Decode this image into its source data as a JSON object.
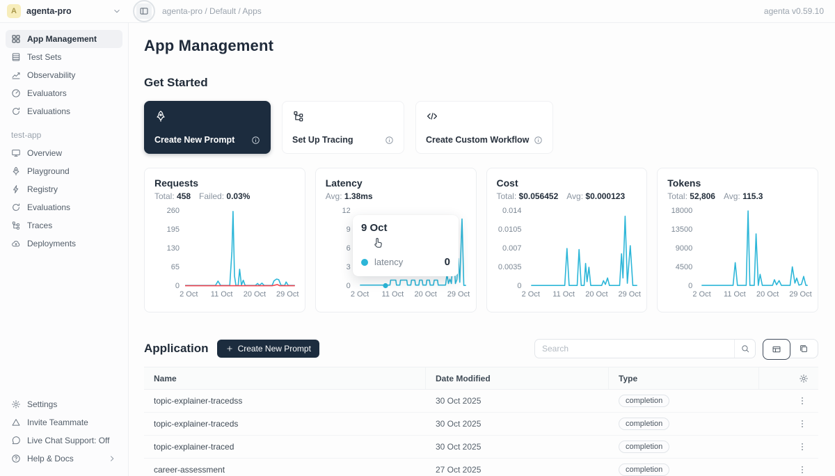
{
  "topbar": {
    "avatar_letter": "A",
    "workspace": "agenta-pro",
    "breadcrumb": "agenta-pro / Default / Apps",
    "version": "agenta v0.59.10"
  },
  "sidebar": {
    "main_items": [
      {
        "label": "App Management",
        "icon": "grid",
        "active": true
      },
      {
        "label": "Test Sets",
        "icon": "list"
      },
      {
        "label": "Observability",
        "icon": "chart"
      },
      {
        "label": "Evaluators",
        "icon": "gauge"
      },
      {
        "label": "Evaluations",
        "icon": "refresh"
      }
    ],
    "project_label": "test-app",
    "project_items": [
      {
        "label": "Overview",
        "icon": "monitor"
      },
      {
        "label": "Playground",
        "icon": "rocket"
      },
      {
        "label": "Registry",
        "icon": "bolt"
      },
      {
        "label": "Evaluations",
        "icon": "refresh"
      },
      {
        "label": "Traces",
        "icon": "tree"
      },
      {
        "label": "Deployments",
        "icon": "cloud"
      }
    ],
    "footer_items": [
      {
        "label": "Settings",
        "icon": "gear"
      },
      {
        "label": "Invite Teammate",
        "icon": "triangle"
      },
      {
        "label": "Live Chat Support: Off",
        "icon": "chat"
      },
      {
        "label": "Help & Docs",
        "icon": "help",
        "chevron": true
      }
    ]
  },
  "main": {
    "title": "App Management",
    "get_started": {
      "heading": "Get Started",
      "cards": [
        {
          "label": "Create New Prompt",
          "icon": "rocket",
          "variant": "dark"
        },
        {
          "label": "Set Up Tracing",
          "icon": "tree",
          "variant": "light"
        },
        {
          "label": "Create Custom Workflow",
          "icon": "code",
          "variant": "light"
        }
      ]
    },
    "application": {
      "heading": "Application",
      "create_button_label": "Create New Prompt",
      "search_placeholder": "Search",
      "view_toggle": {
        "active": "table",
        "options": [
          "table",
          "card"
        ]
      },
      "table": {
        "columns": [
          "Name",
          "Date Modified",
          "Type"
        ],
        "rows": [
          {
            "name": "topic-explainer-tracedss",
            "date": "30 Oct 2025",
            "type": "completion"
          },
          {
            "name": "topic-explainer-traceds",
            "date": "30 Oct 2025",
            "type": "completion"
          },
          {
            "name": "topic-explainer-traced",
            "date": "30 Oct 2025",
            "type": "completion"
          },
          {
            "name": "career-assessment",
            "date": "27 Oct 2025",
            "type": "completion"
          }
        ]
      }
    }
  },
  "tooltip": {
    "date": "9 Oct",
    "series": "latency",
    "value": "0"
  },
  "colors": {
    "accent": "#2cb6d8",
    "danger": "#f5434d",
    "navy": "#1c2c3e"
  },
  "chart_data": [
    {
      "id": "requests",
      "type": "line",
      "title": "Requests",
      "stats": [
        {
          "label": "Total:",
          "value": "458"
        },
        {
          "label": "Failed:",
          "value": "0.03%"
        }
      ],
      "yticks": [
        260,
        195,
        130,
        65,
        0
      ],
      "ylim": [
        0,
        260
      ],
      "xticks": [
        "2 Oct",
        "11 Oct",
        "20 Oct",
        "29 Oct"
      ],
      "xtick_days": [
        2,
        11,
        20,
        29
      ],
      "xlim": [
        1,
        31
      ],
      "grid": false,
      "legend": "none",
      "series": [
        {
          "name": "success",
          "color": "#2cb6d8",
          "points": [
            [
              1,
              2
            ],
            [
              9.3,
              2
            ],
            [
              10,
              17
            ],
            [
              10.7,
              2
            ],
            [
              13.2,
              2
            ],
            [
              13.8,
              120
            ],
            [
              14.1,
              258
            ],
            [
              14.5,
              35
            ],
            [
              14.9,
              2
            ],
            [
              15.5,
              2
            ],
            [
              15.9,
              58
            ],
            [
              16.4,
              3
            ],
            [
              16.9,
              20
            ],
            [
              17.4,
              2
            ],
            [
              20.2,
              2
            ],
            [
              20.8,
              9
            ],
            [
              21.3,
              2
            ],
            [
              22,
              10
            ],
            [
              22.6,
              2
            ],
            [
              24.8,
              2
            ],
            [
              25.3,
              18
            ],
            [
              26,
              24
            ],
            [
              26.6,
              22
            ],
            [
              27.2,
              3
            ],
            [
              28.2,
              2
            ],
            [
              28.6,
              14
            ],
            [
              29.2,
              2
            ],
            [
              31,
              2
            ]
          ]
        },
        {
          "name": "failed",
          "color": "#f5434d",
          "points": [
            [
              1,
              1
            ],
            [
              24.8,
              1
            ],
            [
              25.5,
              3
            ],
            [
              26.2,
              5
            ],
            [
              26.9,
              1
            ],
            [
              31,
              1
            ]
          ]
        }
      ]
    },
    {
      "id": "latency",
      "type": "line",
      "title": "Latency",
      "stats": [
        {
          "label": "Avg:",
          "value": "1.38ms"
        }
      ],
      "yticks": [
        12,
        9,
        6,
        3,
        0
      ],
      "ylim": [
        0,
        12
      ],
      "xticks": [
        "2 Oct",
        "11 Oct",
        "20 Oct",
        "29 Oct"
      ],
      "xtick_days": [
        2,
        11,
        20,
        29
      ],
      "xlim": [
        1,
        31
      ],
      "grid": false,
      "legend": "none",
      "marker": {
        "x": 9,
        "y": 0.05,
        "color": "#2cb6d8"
      },
      "series": [
        {
          "name": "latency",
          "color": "#2cb6d8",
          "points": [
            [
              2,
              0.15
            ],
            [
              8.8,
              0.15
            ],
            [
              9,
              0.05
            ],
            [
              9.6,
              0.15
            ],
            [
              10.2,
              0.15
            ],
            [
              10.4,
              0.95
            ],
            [
              11.8,
              0.95
            ],
            [
              12,
              0.15
            ],
            [
              12.9,
              0.15
            ],
            [
              13.1,
              0.95
            ],
            [
              14.8,
              0.95
            ],
            [
              15,
              0.15
            ],
            [
              15.9,
              0.15
            ],
            [
              16.1,
              0.95
            ],
            [
              17,
              0.95
            ],
            [
              17.2,
              0.15
            ],
            [
              18.1,
              0.15
            ],
            [
              18.3,
              0.95
            ],
            [
              19,
              0.95
            ],
            [
              19.2,
              0.15
            ],
            [
              20.1,
              0.15
            ],
            [
              20.3,
              0.95
            ],
            [
              21,
              0.95
            ],
            [
              21.2,
              0.15
            ],
            [
              22.1,
              0.15
            ],
            [
              22.3,
              0.95
            ],
            [
              23.2,
              0.95
            ],
            [
              23.4,
              0.15
            ],
            [
              25.4,
              0.15
            ],
            [
              25.8,
              1.9
            ],
            [
              26.2,
              0.4
            ],
            [
              26.6,
              1.1
            ],
            [
              27,
              0.4
            ],
            [
              27.6,
              6
            ],
            [
              28.1,
              0.4
            ],
            [
              28.5,
              1
            ],
            [
              28.9,
              4.4
            ],
            [
              29.3,
              0.6
            ],
            [
              29.9,
              10.7
            ],
            [
              30.4,
              0.1
            ],
            [
              31,
              0.1
            ]
          ]
        }
      ]
    },
    {
      "id": "cost",
      "type": "line",
      "title": "Cost",
      "stats": [
        {
          "label": "Total:",
          "value": "$0.056452"
        },
        {
          "label": "Avg:",
          "value": "$0.000123"
        }
      ],
      "yticks": [
        "0.014",
        "0.0105",
        "0.007",
        "0.0035",
        "0"
      ],
      "ylim": [
        0,
        0.014
      ],
      "xticks": [
        "2 Oct",
        "11 Oct",
        "20 Oct",
        "29 Oct"
      ],
      "xtick_days": [
        2,
        11,
        20,
        29
      ],
      "xlim": [
        1,
        31
      ],
      "grid": false,
      "legend": "none",
      "series": [
        {
          "name": "cost",
          "color": "#2cb6d8",
          "points": [
            [
              2,
              0.0001
            ],
            [
              11.2,
              0.0001
            ],
            [
              11.8,
              0.007
            ],
            [
              12.4,
              0.0001
            ],
            [
              14.6,
              0.0001
            ],
            [
              15.1,
              0.0068
            ],
            [
              15.7,
              0.0001
            ],
            [
              16.5,
              0.0001
            ],
            [
              16.9,
              0.0042
            ],
            [
              17.3,
              0.0008
            ],
            [
              17.8,
              0.0035
            ],
            [
              18.3,
              0.0001
            ],
            [
              21.3,
              0.0001
            ],
            [
              21.8,
              0.001
            ],
            [
              22.3,
              0.0003
            ],
            [
              22.9,
              0.0015
            ],
            [
              23.4,
              0.0001
            ],
            [
              26.2,
              0.0001
            ],
            [
              26.7,
              0.006
            ],
            [
              27.1,
              0.0015
            ],
            [
              27.7,
              0.013
            ],
            [
              28.3,
              0.0005
            ],
            [
              29.1,
              0.0075
            ],
            [
              29.8,
              0.0001
            ],
            [
              31,
              0.0001
            ]
          ]
        }
      ]
    },
    {
      "id": "tokens",
      "type": "line",
      "title": "Tokens",
      "stats": [
        {
          "label": "Total:",
          "value": "52,806"
        },
        {
          "label": "Avg:",
          "value": "115.3"
        }
      ],
      "yticks": [
        18000,
        13500,
        9000,
        4500,
        0
      ],
      "ylim": [
        0,
        18000
      ],
      "xticks": [
        "2 Oct",
        "11 Oct",
        "20 Oct",
        "29 Oct"
      ],
      "xtick_days": [
        2,
        11,
        20,
        29
      ],
      "xlim": [
        1,
        31
      ],
      "grid": false,
      "legend": "none",
      "series": [
        {
          "name": "tokens",
          "color": "#2cb6d8",
          "points": [
            [
              2,
              150
            ],
            [
              10.6,
              150
            ],
            [
              11.2,
              5600
            ],
            [
              11.8,
              150
            ],
            [
              14.2,
              150
            ],
            [
              14.7,
              18000
            ],
            [
              15.2,
              150
            ],
            [
              16.4,
              150
            ],
            [
              16.9,
              12500
            ],
            [
              17.5,
              150
            ],
            [
              18,
              2800
            ],
            [
              18.6,
              150
            ],
            [
              21.4,
              150
            ],
            [
              21.9,
              1500
            ],
            [
              22.5,
              300
            ],
            [
              23.2,
              1300
            ],
            [
              23.8,
              150
            ],
            [
              26.2,
              150
            ],
            [
              26.8,
              4600
            ],
            [
              27.5,
              700
            ],
            [
              28,
              1900
            ],
            [
              28.6,
              200
            ],
            [
              29.3,
              400
            ],
            [
              29.9,
              2300
            ],
            [
              30.5,
              150
            ],
            [
              31,
              150
            ]
          ]
        }
      ]
    }
  ]
}
